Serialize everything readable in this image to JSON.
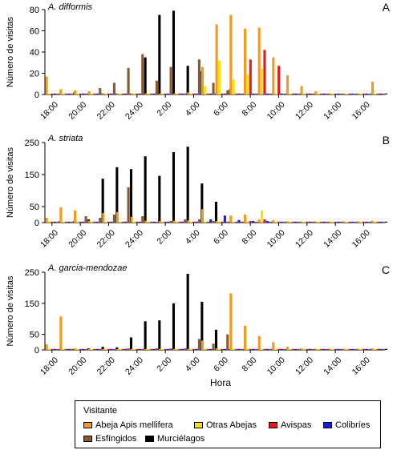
{
  "chart_data": [
    {
      "type": "bar",
      "title": "A. difformis",
      "panel_letter": "A",
      "ylabel": "Número de visitas",
      "ylim": [
        0,
        80
      ],
      "yticks": [
        0,
        20,
        40,
        60,
        80
      ],
      "series": [
        {
          "name": "Abeja Apis mellifera",
          "values": [
            17,
            5,
            4,
            3,
            1,
            1,
            1,
            1,
            0,
            0,
            2,
            26,
            66,
            75,
            62,
            63,
            35,
            18,
            8,
            3,
            1,
            1,
            0,
            12
          ]
        },
        {
          "name": "Otras Abejas",
          "values": [
            0,
            0,
            0,
            0,
            0,
            0,
            0,
            0,
            0,
            0,
            0,
            8,
            32,
            14,
            19,
            24,
            0,
            0,
            0,
            0,
            0,
            0,
            0,
            0
          ]
        },
        {
          "name": "Avispas",
          "values": [
            0,
            0,
            0,
            0,
            0,
            0,
            0,
            0,
            0,
            0,
            0,
            0,
            0,
            0,
            33,
            42,
            27,
            0,
            0,
            0,
            0,
            0,
            0,
            0
          ]
        },
        {
          "name": "Colibríes",
          "values": [
            0,
            0,
            0,
            0,
            0,
            0,
            0,
            0,
            0,
            0,
            0,
            0,
            0,
            0,
            0,
            0,
            0,
            0,
            0,
            0,
            0,
            0,
            0,
            0
          ]
        },
        {
          "name": "Esfíngidos",
          "values": [
            0,
            0,
            1,
            6,
            11,
            25,
            38,
            13,
            26,
            1,
            33,
            11,
            4,
            0,
            0,
            0,
            0,
            0,
            0,
            0,
            0,
            0,
            0,
            0
          ]
        },
        {
          "name": "Murciélagos",
          "values": [
            0,
            2,
            1,
            1,
            1,
            1,
            35,
            75,
            79,
            27,
            22,
            1,
            5,
            0,
            0,
            0,
            0,
            0,
            0,
            0,
            0,
            0,
            0,
            0
          ]
        }
      ]
    },
    {
      "type": "bar",
      "title": "A. striata",
      "panel_letter": "B",
      "ylabel": "Número de visitas",
      "ylim": [
        0,
        250
      ],
      "yticks": [
        0,
        50,
        150,
        250
      ],
      "series": [
        {
          "name": "Abeja Apis mellifera",
          "values": [
            15,
            48,
            38,
            6,
            30,
            33,
            18,
            6,
            5,
            6,
            7,
            42,
            5,
            22,
            25,
            10,
            8,
            4,
            3,
            2,
            2,
            2,
            1,
            6
          ]
        },
        {
          "name": "Otras Abejas",
          "values": [
            5,
            0,
            0,
            0,
            0,
            0,
            0,
            0,
            0,
            0,
            0,
            0,
            0,
            0,
            0,
            38,
            0,
            0,
            0,
            0,
            0,
            0,
            0,
            0
          ]
        },
        {
          "name": "Avispas",
          "values": [
            0,
            0,
            0,
            0,
            0,
            0,
            0,
            0,
            0,
            0,
            0,
            0,
            0,
            0,
            5,
            10,
            0,
            0,
            0,
            0,
            0,
            0,
            0,
            0
          ]
        },
        {
          "name": "Colibríes",
          "values": [
            0,
            0,
            0,
            0,
            0,
            0,
            0,
            0,
            0,
            0,
            0,
            10,
            22,
            8,
            5,
            5,
            2,
            0,
            0,
            0,
            0,
            0,
            0,
            0
          ]
        },
        {
          "name": "Esfíngidos",
          "values": [
            3,
            0,
            20,
            15,
            25,
            110,
            20,
            0,
            5,
            10,
            10,
            5,
            0,
            0,
            0,
            0,
            0,
            0,
            0,
            0,
            0,
            0,
            0,
            0
          ]
        },
        {
          "name": "Murciélagos",
          "values": [
            5,
            5,
            10,
            137,
            173,
            167,
            207,
            146,
            220,
            237,
            122,
            65,
            4,
            0,
            0,
            0,
            0,
            0,
            0,
            0,
            0,
            0,
            0,
            0
          ]
        }
      ]
    },
    {
      "type": "bar",
      "title": "A. garcia-mendozae",
      "panel_letter": "C",
      "ylabel": "Número de visitas",
      "ylim": [
        0,
        250
      ],
      "yticks": [
        0,
        50,
        150,
        250
      ],
      "series": [
        {
          "name": "Abeja Apis mellifera",
          "values": [
            18,
            108,
            5,
            3,
            3,
            3,
            3,
            3,
            3,
            3,
            3,
            30,
            5,
            182,
            78,
            45,
            25,
            10,
            5,
            3,
            3,
            3,
            3,
            5
          ]
        },
        {
          "name": "Otras Abejas",
          "values": [
            0,
            0,
            0,
            0,
            0,
            0,
            0,
            0,
            0,
            0,
            0,
            0,
            0,
            0,
            0,
            0,
            0,
            0,
            0,
            0,
            0,
            0,
            0,
            0
          ]
        },
        {
          "name": "Avispas",
          "values": [
            0,
            0,
            0,
            0,
            0,
            0,
            0,
            0,
            0,
            0,
            0,
            0,
            0,
            0,
            0,
            0,
            0,
            0,
            0,
            0,
            0,
            0,
            0,
            0
          ]
        },
        {
          "name": "Colibríes",
          "values": [
            0,
            0,
            0,
            0,
            0,
            0,
            0,
            0,
            0,
            0,
            0,
            0,
            0,
            0,
            0,
            0,
            0,
            0,
            0,
            0,
            0,
            0,
            0,
            0
          ]
        },
        {
          "name": "Esfíngidos",
          "values": [
            0,
            0,
            0,
            0,
            0,
            5,
            0,
            5,
            5,
            5,
            35,
            20,
            50,
            0,
            0,
            0,
            0,
            0,
            0,
            0,
            0,
            0,
            0,
            0
          ]
        },
        {
          "name": "Murciélagos",
          "values": [
            0,
            0,
            5,
            10,
            8,
            40,
            92,
            95,
            150,
            245,
            155,
            65,
            3,
            0,
            0,
            0,
            0,
            0,
            0,
            0,
            0,
            0,
            0,
            0
          ]
        }
      ]
    }
  ],
  "x_tick_labels": [
    "18:00",
    "20:00",
    "22:00",
    "24:00",
    "2:00",
    "4:00",
    "6:00",
    "8:00",
    "10:00",
    "12:00",
    "14:00",
    "16:00"
  ],
  "xlabel": "Hora",
  "legend": {
    "title": "Visitante",
    "entries": [
      {
        "label": "Abeja Apis mellifera",
        "color": "#F39A1C"
      },
      {
        "label": "Otras Abejas",
        "color": "#F2E21A"
      },
      {
        "label": "Avispas",
        "color": "#E41A1C"
      },
      {
        "label": "Colibríes",
        "color": "#1A1AE0"
      },
      {
        "label": "Esfíngidos",
        "color": "#8B5A2B"
      },
      {
        "label": "Murciélagos",
        "color": "#000000"
      }
    ]
  }
}
